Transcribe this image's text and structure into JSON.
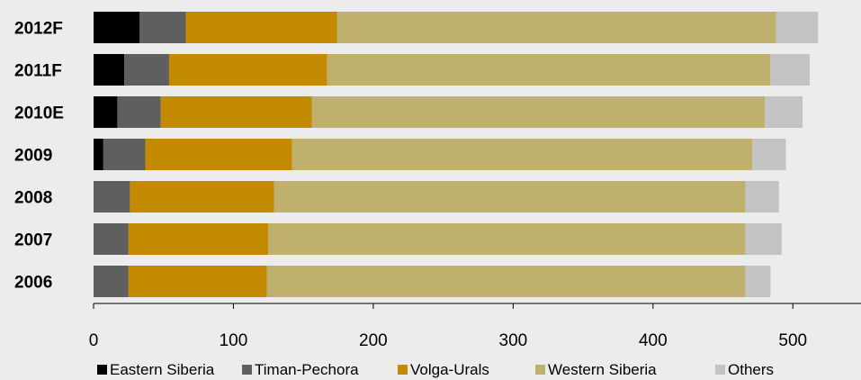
{
  "chart_data": {
    "type": "bar",
    "orientation": "horizontal",
    "stacked": true,
    "categories": [
      "2012F",
      "2011F",
      "2010E",
      "2009",
      "2008",
      "2007",
      "2006"
    ],
    "series": [
      {
        "name": "Eastern Siberia",
        "color": "#000000",
        "values": [
          33,
          22,
          17,
          7,
          0,
          0,
          0
        ]
      },
      {
        "name": "Timan-Pechora",
        "color": "#5f5f5f",
        "values": [
          33,
          32,
          31,
          30,
          26,
          25,
          25
        ]
      },
      {
        "name": "Volga-Urals",
        "color": "#c48a00",
        "values": [
          108,
          113,
          108,
          105,
          103,
          100,
          99
        ]
      },
      {
        "name": "Western Siberia",
        "color": "#bfb06e",
        "values": [
          314,
          317,
          324,
          329,
          337,
          341,
          342
        ]
      },
      {
        "name": "Others",
        "color": "#c3c3c3",
        "values": [
          30,
          28,
          27,
          24,
          24,
          26,
          18
        ]
      }
    ],
    "xlim": [
      0,
      550
    ],
    "xticks": [
      "0",
      "100",
      "200",
      "300",
      "400",
      "500"
    ],
    "legend_position": "bottom",
    "grid": false
  }
}
